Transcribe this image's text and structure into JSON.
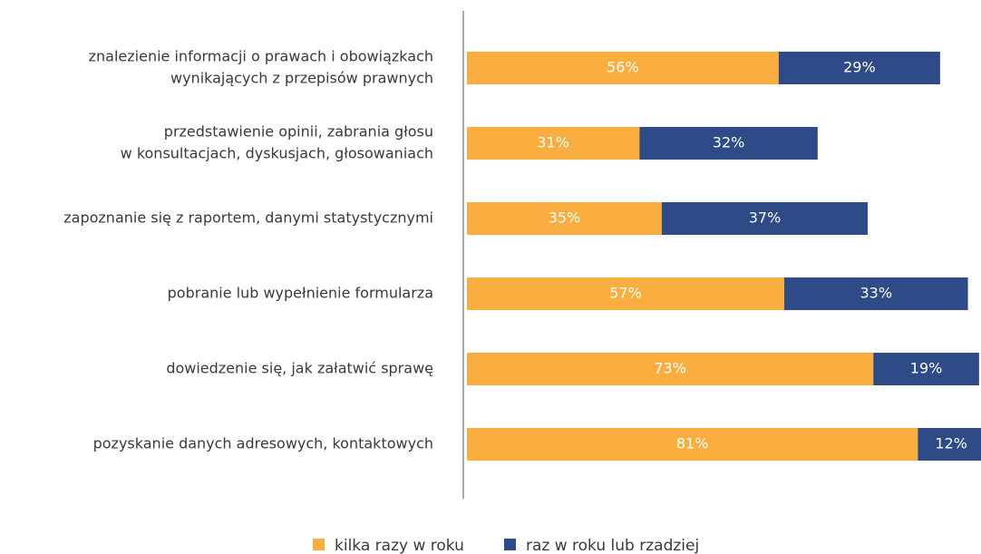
{
  "chart_data": {
    "type": "stacked-bar-horizontal",
    "categories": [
      [
        "znalezienie informacji o prawach i obowiązkach",
        "wynikających z przepisów prawnych"
      ],
      [
        "przedstawienie opinii, zabrania głosu",
        "w konsultacjach, dyskusjach, głosowaniach"
      ],
      [
        "zapoznanie się z raportem, danymi statystycznymi"
      ],
      [
        "pobranie lub wypełnienie formularza"
      ],
      [
        "dowiedzenie się, jak załatwić sprawę"
      ],
      [
        "pozyskanie danych adresowych, kontaktowych"
      ]
    ],
    "series": [
      {
        "name": "kilka razy w roku",
        "color": "#f9ae3f",
        "values": [
          56,
          31,
          35,
          57,
          73,
          81
        ],
        "value_labels": [
          "56%",
          "31%",
          "35%",
          "57%",
          "73%",
          "81%"
        ]
      },
      {
        "name": "raz w roku lub rzadziej",
        "color": "#2e4a87",
        "values": [
          29,
          32,
          37,
          33,
          19,
          12
        ],
        "value_labels": [
          "29%",
          "32%",
          "37%",
          "33%",
          "19%",
          "12%"
        ]
      }
    ]
  }
}
